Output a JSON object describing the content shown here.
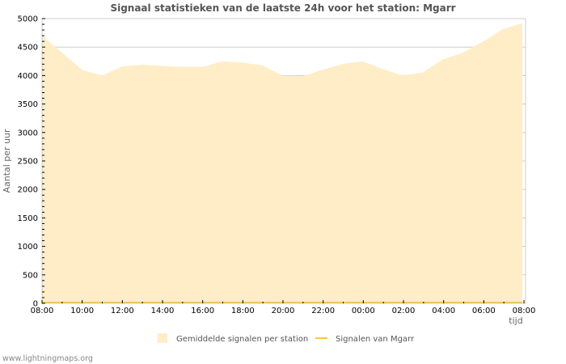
{
  "chart_data": {
    "type": "area",
    "title": "Signaal statistieken van de laatste 24h voor het station: Mgarr",
    "xlabel": "tijd",
    "ylabel": "Aantal per uur",
    "ylim": [
      0,
      5000
    ],
    "yticks": [
      0,
      500,
      1000,
      1500,
      2000,
      2500,
      3000,
      3500,
      4000,
      4500,
      5000
    ],
    "xtick_labels": [
      "08:00",
      "10:00",
      "12:00",
      "14:00",
      "16:00",
      "18:00",
      "20:00",
      "22:00",
      "00:00",
      "02:00",
      "04:00",
      "06:00",
      "08:00"
    ],
    "x": [
      "08:00",
      "09:00",
      "10:00",
      "11:00",
      "12:00",
      "13:00",
      "14:00",
      "15:00",
      "16:00",
      "17:00",
      "18:00",
      "19:00",
      "20:00",
      "21:00",
      "22:00",
      "23:00",
      "00:00",
      "01:00",
      "02:00",
      "03:00",
      "04:00",
      "05:00",
      "06:00",
      "07:00",
      "08:00"
    ],
    "grid": true,
    "legend_position": "bottom",
    "series": [
      {
        "name": "Gemiddelde signalen per station",
        "style": "area",
        "color": "#ffedc8",
        "values": [
          4700,
          4400,
          4100,
          4000,
          4160,
          4190,
          4170,
          4150,
          4150,
          4250,
          4230,
          4180,
          4000,
          3990,
          4100,
          4200,
          4250,
          4120,
          4000,
          4050,
          4280,
          4400,
          4590,
          4810,
          4920
        ]
      },
      {
        "name": "Signalen van Mgarr",
        "style": "line",
        "color": "#f5c842",
        "values": [
          0,
          0,
          0,
          0,
          0,
          0,
          0,
          0,
          0,
          0,
          0,
          0,
          0,
          0,
          0,
          0,
          0,
          0,
          0,
          0,
          0,
          0,
          0,
          0,
          0
        ]
      }
    ]
  },
  "footer": "www.lightningmaps.org"
}
